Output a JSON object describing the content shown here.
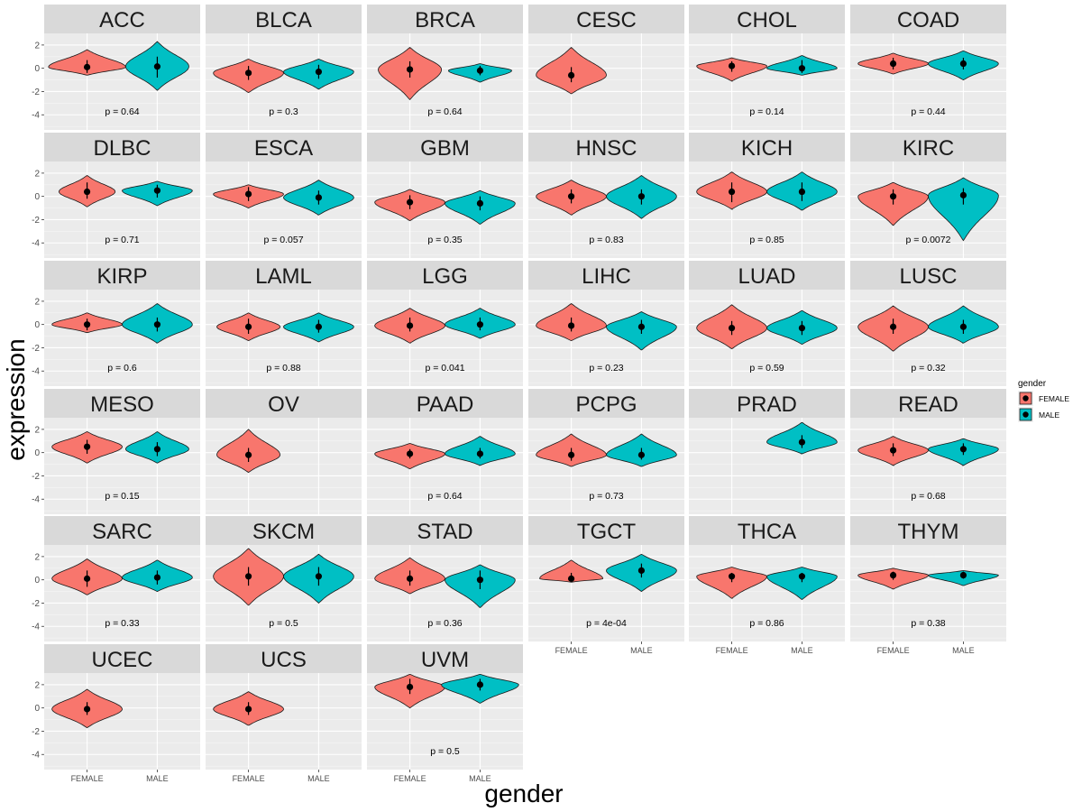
{
  "chart_data": {
    "type": "violin",
    "xlabel": "gender",
    "ylabel": "expression",
    "categories": [
      "FEMALE",
      "MALE"
    ],
    "y_ticks": [
      "2",
      "0",
      "-2",
      "-4"
    ],
    "ylim": [
      -5.3,
      3.0
    ],
    "legend": {
      "title": "gender",
      "position": "right",
      "entries": [
        {
          "label": "FEMALE",
          "color": "#F8766D"
        },
        {
          "label": "MALE",
          "color": "#00BFC4"
        }
      ]
    },
    "colors": {
      "FEMALE": "#F8766D",
      "MALE": "#00BFC4",
      "panel": "#EBEBEB",
      "strip": "#D9D9D9"
    },
    "panels": [
      {
        "name": "ACC",
        "p": "p = 0.64",
        "female": {
          "median": 0.1,
          "min": -0.6,
          "max": 1.6,
          "w": 0.55,
          "range": [
            -0.4,
            0.7
          ]
        },
        "male": {
          "median": 0.15,
          "min": -1.9,
          "max": 2.3,
          "w": 0.45,
          "range": [
            -0.8,
            1.0
          ]
        }
      },
      {
        "name": "BLCA",
        "p": "p = 0.3",
        "female": {
          "median": -0.4,
          "min": -2.1,
          "max": 0.8,
          "w": 0.5,
          "range": [
            -1.0,
            0.2
          ]
        },
        "male": {
          "median": -0.3,
          "min": -1.8,
          "max": 0.8,
          "w": 0.5,
          "range": [
            -0.9,
            0.3
          ]
        }
      },
      {
        "name": "BRCA",
        "p": "p = 0.64",
        "female": {
          "median": -0.1,
          "min": -2.7,
          "max": 1.8,
          "w": 0.45,
          "range": [
            -0.8,
            0.6
          ]
        },
        "male": {
          "median": -0.2,
          "min": -1.2,
          "max": 0.4,
          "w": 0.45,
          "range": [
            -0.6,
            0.2
          ]
        }
      },
      {
        "name": "CESC",
        "p": "",
        "female": {
          "median": -0.6,
          "min": -2.2,
          "max": 1.8,
          "w": 0.5,
          "range": [
            -1.2,
            0.1
          ]
        }
      },
      {
        "name": "CHOL",
        "p": "p = 0.14",
        "female": {
          "median": 0.2,
          "min": -1.1,
          "max": 0.9,
          "w": 0.5,
          "range": [
            -0.3,
            0.6
          ]
        },
        "male": {
          "median": 0.0,
          "min": -0.6,
          "max": 1.1,
          "w": 0.5,
          "range": [
            -0.4,
            0.7
          ]
        }
      },
      {
        "name": "COAD",
        "p": "p = 0.44",
        "female": {
          "median": 0.4,
          "min": -0.5,
          "max": 1.3,
          "w": 0.5,
          "range": [
            -0.1,
            0.9
          ]
        },
        "male": {
          "median": 0.4,
          "min": -1.0,
          "max": 1.5,
          "w": 0.5,
          "range": [
            -0.1,
            0.9
          ]
        }
      },
      {
        "name": "DLBC",
        "p": "p = 0.71",
        "female": {
          "median": 0.4,
          "min": -0.9,
          "max": 1.8,
          "w": 0.4,
          "range": [
            -0.2,
            1.2
          ]
        },
        "male": {
          "median": 0.5,
          "min": -0.8,
          "max": 1.3,
          "w": 0.5,
          "range": [
            -0.1,
            1.0
          ]
        }
      },
      {
        "name": "ESCA",
        "p": "p = 0.057",
        "female": {
          "median": 0.2,
          "min": -1.0,
          "max": 1.0,
          "w": 0.5,
          "range": [
            -0.4,
            0.8
          ]
        },
        "male": {
          "median": -0.1,
          "min": -1.6,
          "max": 1.4,
          "w": 0.5,
          "range": [
            -0.7,
            0.5
          ]
        }
      },
      {
        "name": "GBM",
        "p": "p = 0.35",
        "female": {
          "median": -0.5,
          "min": -2.1,
          "max": 0.6,
          "w": 0.5,
          "range": [
            -1.1,
            0.1
          ]
        },
        "male": {
          "median": -0.6,
          "min": -2.4,
          "max": 0.5,
          "w": 0.5,
          "range": [
            -1.2,
            0.0
          ]
        }
      },
      {
        "name": "HNSC",
        "p": "p = 0.83",
        "female": {
          "median": 0.0,
          "min": -1.6,
          "max": 1.4,
          "w": 0.5,
          "range": [
            -0.6,
            0.6
          ]
        },
        "male": {
          "median": 0.0,
          "min": -1.9,
          "max": 1.8,
          "w": 0.5,
          "range": [
            -0.7,
            0.6
          ]
        }
      },
      {
        "name": "KICH",
        "p": "p = 0.85",
        "female": {
          "median": 0.4,
          "min": -1.1,
          "max": 2.1,
          "w": 0.5,
          "range": [
            -0.5,
            1.2
          ]
        },
        "male": {
          "median": 0.4,
          "min": -1.2,
          "max": 2.1,
          "w": 0.5,
          "range": [
            -0.4,
            1.2
          ]
        }
      },
      {
        "name": "KIRC",
        "p": "p = 0.0072",
        "female": {
          "median": 0.0,
          "min": -2.5,
          "max": 1.2,
          "w": 0.5,
          "range": [
            -0.7,
            0.6
          ]
        },
        "male": {
          "median": 0.1,
          "min": -3.8,
          "max": 1.6,
          "w": 0.5,
          "range": [
            -0.7,
            0.7
          ]
        }
      },
      {
        "name": "KIRP",
        "p": "p = 0.6",
        "female": {
          "median": 0.0,
          "min": -0.7,
          "max": 1.0,
          "w": 0.5,
          "range": [
            -0.5,
            0.5
          ]
        },
        "male": {
          "median": 0.0,
          "min": -1.6,
          "max": 1.8,
          "w": 0.5,
          "range": [
            -0.6,
            0.6
          ]
        }
      },
      {
        "name": "LAML",
        "p": "p = 0.88",
        "female": {
          "median": -0.2,
          "min": -1.4,
          "max": 1.0,
          "w": 0.45,
          "range": [
            -0.8,
            0.5
          ]
        },
        "male": {
          "median": -0.2,
          "min": -1.5,
          "max": 1.0,
          "w": 0.5,
          "range": [
            -0.7,
            0.4
          ]
        }
      },
      {
        "name": "LGG",
        "p": "p = 0.041",
        "female": {
          "median": -0.1,
          "min": -1.6,
          "max": 1.4,
          "w": 0.5,
          "range": [
            -0.6,
            0.6
          ]
        },
        "male": {
          "median": 0.0,
          "min": -1.2,
          "max": 1.4,
          "w": 0.5,
          "range": [
            -0.5,
            0.6
          ]
        }
      },
      {
        "name": "LIHC",
        "p": "p = 0.23",
        "female": {
          "median": -0.1,
          "min": -1.4,
          "max": 1.8,
          "w": 0.5,
          "range": [
            -0.6,
            0.6
          ]
        },
        "male": {
          "median": -0.2,
          "min": -2.2,
          "max": 1.1,
          "w": 0.5,
          "range": [
            -0.8,
            0.4
          ]
        }
      },
      {
        "name": "LUAD",
        "p": "p = 0.59",
        "female": {
          "median": -0.3,
          "min": -2.1,
          "max": 1.7,
          "w": 0.5,
          "range": [
            -0.9,
            0.3
          ]
        },
        "male": {
          "median": -0.3,
          "min": -1.7,
          "max": 1.2,
          "w": 0.5,
          "range": [
            -0.9,
            0.3
          ]
        }
      },
      {
        "name": "LUSC",
        "p": "p = 0.32",
        "female": {
          "median": -0.2,
          "min": -2.3,
          "max": 1.6,
          "w": 0.5,
          "range": [
            -0.8,
            0.5
          ]
        },
        "male": {
          "median": -0.2,
          "min": -1.6,
          "max": 1.6,
          "w": 0.5,
          "range": [
            -0.8,
            0.4
          ]
        }
      },
      {
        "name": "MESO",
        "p": "p = 0.15",
        "female": {
          "median": 0.5,
          "min": -0.9,
          "max": 1.8,
          "w": 0.5,
          "range": [
            -0.1,
            1.1
          ]
        },
        "male": {
          "median": 0.3,
          "min": -0.9,
          "max": 1.8,
          "w": 0.45,
          "range": [
            -0.3,
            0.9
          ]
        }
      },
      {
        "name": "OV",
        "p": "",
        "female": {
          "median": -0.2,
          "min": -1.7,
          "max": 2.0,
          "w": 0.45,
          "range": [
            -0.8,
            0.4
          ]
        }
      },
      {
        "name": "PAAD",
        "p": "p = 0.64",
        "female": {
          "median": -0.1,
          "min": -1.4,
          "max": 0.8,
          "w": 0.5,
          "range": [
            -0.5,
            0.3
          ]
        },
        "male": {
          "median": -0.1,
          "min": -1.1,
          "max": 1.4,
          "w": 0.5,
          "range": [
            -0.5,
            0.4
          ]
        }
      },
      {
        "name": "PCPG",
        "p": "p = 0.73",
        "female": {
          "median": -0.2,
          "min": -1.2,
          "max": 1.6,
          "w": 0.5,
          "range": [
            -0.7,
            0.4
          ]
        },
        "male": {
          "median": -0.2,
          "min": -1.2,
          "max": 1.6,
          "w": 0.5,
          "range": [
            -0.6,
            0.4
          ]
        }
      },
      {
        "name": "PRAD",
        "p": "",
        "male": {
          "median": 0.9,
          "min": -0.1,
          "max": 2.6,
          "w": 0.5,
          "range": [
            0.4,
            1.5
          ]
        }
      },
      {
        "name": "READ",
        "p": "p = 0.68",
        "female": {
          "median": 0.2,
          "min": -1.1,
          "max": 1.4,
          "w": 0.5,
          "range": [
            -0.3,
            0.8
          ]
        },
        "male": {
          "median": 0.3,
          "min": -1.1,
          "max": 1.2,
          "w": 0.5,
          "range": [
            -0.2,
            0.8
          ]
        }
      },
      {
        "name": "SARC",
        "p": "p = 0.33",
        "female": {
          "median": 0.1,
          "min": -1.3,
          "max": 1.8,
          "w": 0.5,
          "range": [
            -0.6,
            0.8
          ]
        },
        "male": {
          "median": 0.2,
          "min": -1.0,
          "max": 1.7,
          "w": 0.5,
          "range": [
            -0.4,
            0.8
          ]
        }
      },
      {
        "name": "SKCM",
        "p": "p = 0.5",
        "female": {
          "median": 0.3,
          "min": -2.2,
          "max": 2.7,
          "w": 0.5,
          "range": [
            -0.5,
            1.1
          ]
        },
        "male": {
          "median": 0.3,
          "min": -2.0,
          "max": 2.2,
          "w": 0.5,
          "range": [
            -0.5,
            1.1
          ]
        }
      },
      {
        "name": "STAD",
        "p": "p = 0.36",
        "female": {
          "median": 0.1,
          "min": -1.2,
          "max": 1.9,
          "w": 0.5,
          "range": [
            -0.5,
            0.8
          ]
        },
        "male": {
          "median": 0.0,
          "min": -2.4,
          "max": 1.3,
          "w": 0.5,
          "range": [
            -0.8,
            0.8
          ]
        }
      },
      {
        "name": "TGCT",
        "p": "p = 4e-04",
        "female": {
          "median": 0.1,
          "min": -0.2,
          "max": 1.7,
          "w": 0.45,
          "range": [
            -0.1,
            0.6
          ]
        },
        "male": {
          "median": 0.8,
          "min": -1.0,
          "max": 2.2,
          "w": 0.5,
          "range": [
            0.2,
            1.4
          ]
        }
      },
      {
        "name": "THCA",
        "p": "p = 0.86",
        "female": {
          "median": 0.3,
          "min": -1.6,
          "max": 1.1,
          "w": 0.5,
          "range": [
            -0.2,
            0.6
          ]
        },
        "male": {
          "median": 0.3,
          "min": -1.7,
          "max": 1.1,
          "w": 0.5,
          "range": [
            -0.2,
            0.6
          ]
        }
      },
      {
        "name": "THYM",
        "p": "p = 0.38",
        "female": {
          "median": 0.4,
          "min": -0.8,
          "max": 1.0,
          "w": 0.5,
          "range": [
            0.0,
            0.7
          ]
        },
        "male": {
          "median": 0.4,
          "min": -0.5,
          "max": 0.8,
          "w": 0.5,
          "range": [
            0.1,
            0.7
          ]
        }
      },
      {
        "name": "UCEC",
        "p": "",
        "female": {
          "median": -0.1,
          "min": -1.7,
          "max": 1.6,
          "w": 0.5,
          "range": [
            -0.6,
            0.5
          ]
        }
      },
      {
        "name": "UCS",
        "p": "",
        "female": {
          "median": -0.1,
          "min": -1.5,
          "max": 1.4,
          "w": 0.5,
          "range": [
            -0.6,
            0.5
          ]
        }
      },
      {
        "name": "UVM",
        "p": "p = 0.5",
        "female": {
          "median": 1.8,
          "min": 0.0,
          "max": 2.9,
          "w": 0.5,
          "range": [
            1.2,
            2.5
          ]
        },
        "male": {
          "median": 2.0,
          "min": 0.4,
          "max": 2.9,
          "w": 0.55,
          "range": [
            1.5,
            2.5
          ]
        }
      }
    ]
  }
}
